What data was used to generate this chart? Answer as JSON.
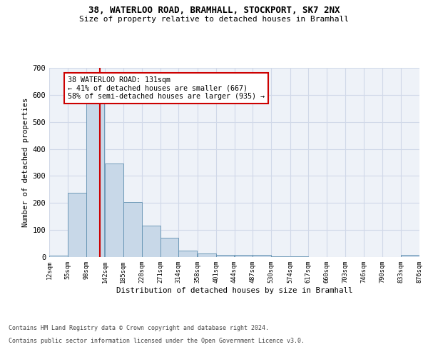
{
  "title_line1": "38, WATERLOO ROAD, BRAMHALL, STOCKPORT, SK7 2NX",
  "title_line2": "Size of property relative to detached houses in Bramhall",
  "xlabel": "Distribution of detached houses by size in Bramhall",
  "ylabel": "Number of detached properties",
  "bar_color": "#c8d8e8",
  "bar_edge_color": "#6090b0",
  "grid_color": "#d0d8e8",
  "background_color": "#eef2f8",
  "property_line_x": 131,
  "property_line_color": "#cc0000",
  "annotation_text": "38 WATERLOO ROAD: 131sqm\n← 41% of detached houses are smaller (667)\n58% of semi-detached houses are larger (935) →",
  "annotation_box_color": "#ffffff",
  "annotation_box_edge": "#cc0000",
  "footer_line1": "Contains HM Land Registry data © Crown copyright and database right 2024.",
  "footer_line2": "Contains public sector information licensed under the Open Government Licence v3.0.",
  "bin_edges": [
    12,
    55,
    98,
    142,
    185,
    228,
    271,
    314,
    358,
    401,
    444,
    487,
    530,
    574,
    617,
    660,
    703,
    746,
    790,
    833,
    876
  ],
  "bar_heights": [
    5,
    238,
    590,
    347,
    203,
    116,
    72,
    25,
    13,
    9,
    8,
    7,
    3,
    2,
    1,
    1,
    0,
    0,
    0,
    7
  ],
  "ylim": [
    0,
    700
  ],
  "xlim": [
    12,
    876
  ]
}
